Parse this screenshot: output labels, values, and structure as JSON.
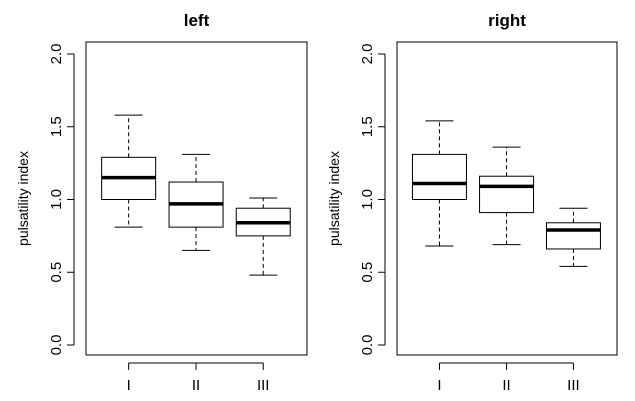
{
  "chart_data": [
    {
      "type": "boxplot",
      "title": "left",
      "ylabel": "pulsatility index",
      "xlabel": "",
      "categories": [
        "I",
        "II",
        "III"
      ],
      "ylim": [
        0.0,
        2.0
      ],
      "yticks": [
        "0.0",
        "0.5",
        "1.0",
        "1.5",
        "2.0"
      ],
      "grid": false,
      "boxes": [
        {
          "category": "I",
          "whisker_low": 0.81,
          "q1": 1.0,
          "median": 1.15,
          "q3": 1.29,
          "whisker_high": 1.58
        },
        {
          "category": "II",
          "whisker_low": 0.65,
          "q1": 0.81,
          "median": 0.97,
          "q3": 1.12,
          "whisker_high": 1.31
        },
        {
          "category": "III",
          "whisker_low": 0.48,
          "q1": 0.75,
          "median": 0.84,
          "q3": 0.94,
          "whisker_high": 1.01
        }
      ]
    },
    {
      "type": "boxplot",
      "title": "right",
      "ylabel": "pulsatility index",
      "xlabel": "",
      "categories": [
        "I",
        "II",
        "III"
      ],
      "ylim": [
        0.0,
        2.0
      ],
      "yticks": [
        "0.0",
        "0.5",
        "1.0",
        "1.5",
        "2.0"
      ],
      "grid": false,
      "boxes": [
        {
          "category": "I",
          "whisker_low": 0.68,
          "q1": 1.0,
          "median": 1.11,
          "q3": 1.31,
          "whisker_high": 1.54
        },
        {
          "category": "II",
          "whisker_low": 0.69,
          "q1": 0.91,
          "median": 1.09,
          "q3": 1.16,
          "whisker_high": 1.36
        },
        {
          "category": "III",
          "whisker_low": 0.54,
          "q1": 0.66,
          "median": 0.79,
          "q3": 0.84,
          "whisker_high": 0.94
        }
      ]
    }
  ]
}
